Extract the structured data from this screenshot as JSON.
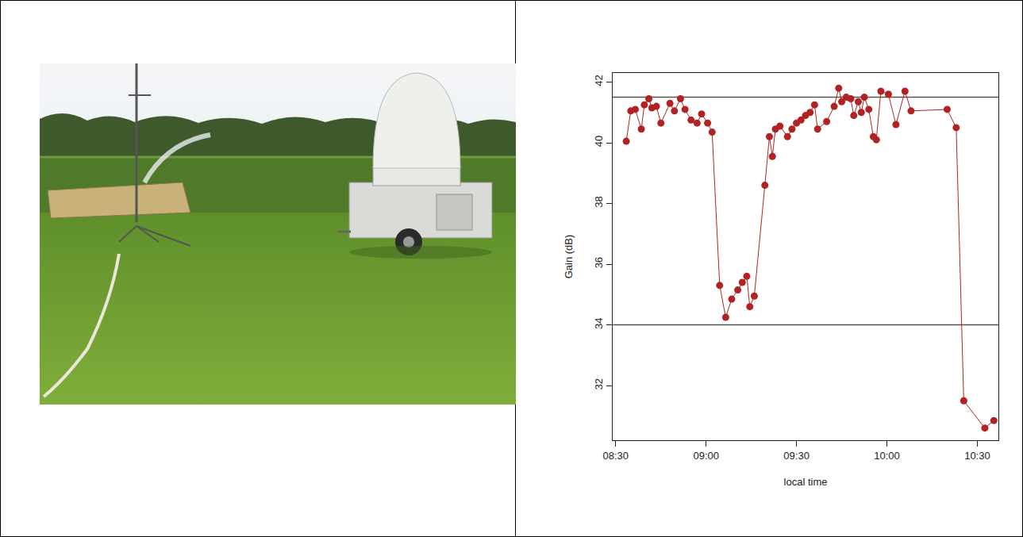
{
  "chart_data": {
    "type": "line",
    "marker": "circle",
    "color": "#b22222",
    "xlabel": "local time",
    "ylabel": "Gain (dB)",
    "x": [
      513.5,
      515,
      516.5,
      518.5,
      519.5,
      521,
      522,
      523.5,
      525,
      528,
      529.5,
      531.5,
      533,
      535,
      537,
      538.5,
      540.5,
      542,
      544.5,
      546.5,
      548.5,
      550.5,
      552,
      553.5,
      554.5,
      556,
      559.5,
      561,
      562,
      563,
      564.5,
      567,
      568.5,
      570,
      571.5,
      573,
      574.5,
      576,
      577,
      580,
      582.5,
      584,
      585,
      586.5,
      588,
      589,
      590.5,
      591.5,
      592.5,
      594,
      595.5,
      596.5,
      598,
      600.5,
      603,
      606,
      608,
      620,
      623,
      625.5,
      632.5,
      635.5
    ],
    "values": [
      40.05,
      41.05,
      41.1,
      40.45,
      41.25,
      41.45,
      41.15,
      41.2,
      40.65,
      41.3,
      41.05,
      41.45,
      41.1,
      40.75,
      40.65,
      40.95,
      40.65,
      40.35,
      35.3,
      34.25,
      34.85,
      35.15,
      35.4,
      35.6,
      34.6,
      34.95,
      38.6,
      40.2,
      39.55,
      40.45,
      40.55,
      40.2,
      40.45,
      40.65,
      40.75,
      40.9,
      41.0,
      41.25,
      40.45,
      40.7,
      41.2,
      41.8,
      41.35,
      41.5,
      41.45,
      40.9,
      41.35,
      41.0,
      41.5,
      41.1,
      40.2,
      40.1,
      41.7,
      41.6,
      40.6,
      41.7,
      41.05,
      41.1,
      40.5,
      31.5,
      30.6,
      30.85
    ],
    "xlim": [
      509,
      637
    ],
    "xticks": [
      {
        "value": 510,
        "label": "08:30"
      },
      {
        "value": 540,
        "label": "09:00"
      },
      {
        "value": 570,
        "label": "09:30"
      },
      {
        "value": 600,
        "label": "10:00"
      },
      {
        "value": 630,
        "label": "10:30"
      }
    ],
    "ylim": [
      30.2,
      42.3
    ],
    "yticks": [
      32,
      34,
      36,
      38,
      40,
      42
    ],
    "reference_lines": [
      41.5,
      34
    ],
    "grid": false
  }
}
